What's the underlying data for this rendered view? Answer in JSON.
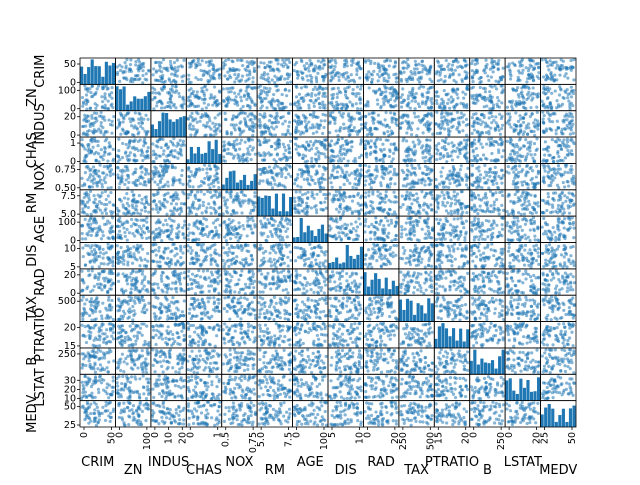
{
  "chart_data": {
    "type": "scatter",
    "variables": [
      "CRIM",
      "ZN",
      "INDUS",
      "CHAS",
      "NOX",
      "RM",
      "AGE",
      "DIS",
      "RAD",
      "TAX",
      "PTRATIO",
      "B",
      "LSTAT",
      "MEDV"
    ],
    "marker_color": "#1f77b4",
    "diagonal": "histogram",
    "x_ticks": [
      [
        "0",
        "50"
      ],
      [
        "0",
        "100"
      ],
      [
        "0",
        "10",
        "20"
      ],
      [
        "0",
        "1"
      ],
      [
        "0.5",
        "0.75"
      ],
      [
        "5.0",
        "7.5"
      ],
      [
        "0",
        "100"
      ],
      [
        "5",
        "10"
      ],
      [
        "0",
        "20"
      ],
      [
        "250",
        "500"
      ],
      [
        "15",
        "20"
      ],
      [
        "0",
        "250"
      ],
      [
        "0",
        "20"
      ],
      [
        "25",
        "50"
      ]
    ],
    "y_ticks": [
      [
        "50",
        "0"
      ],
      [
        "100",
        "0"
      ],
      [
        "20",
        "0"
      ],
      [
        "1",
        "0"
      ],
      [
        "0.75",
        "0.50"
      ],
      [
        "7.5",
        "5.0"
      ],
      [
        "100",
        "0"
      ],
      [
        "10",
        "5"
      ],
      [
        "20",
        "0"
      ],
      [
        "500"
      ],
      [
        "20",
        "15"
      ],
      [
        "250"
      ],
      [
        "30",
        "20",
        "10"
      ],
      [
        "50",
        "25"
      ]
    ]
  }
}
